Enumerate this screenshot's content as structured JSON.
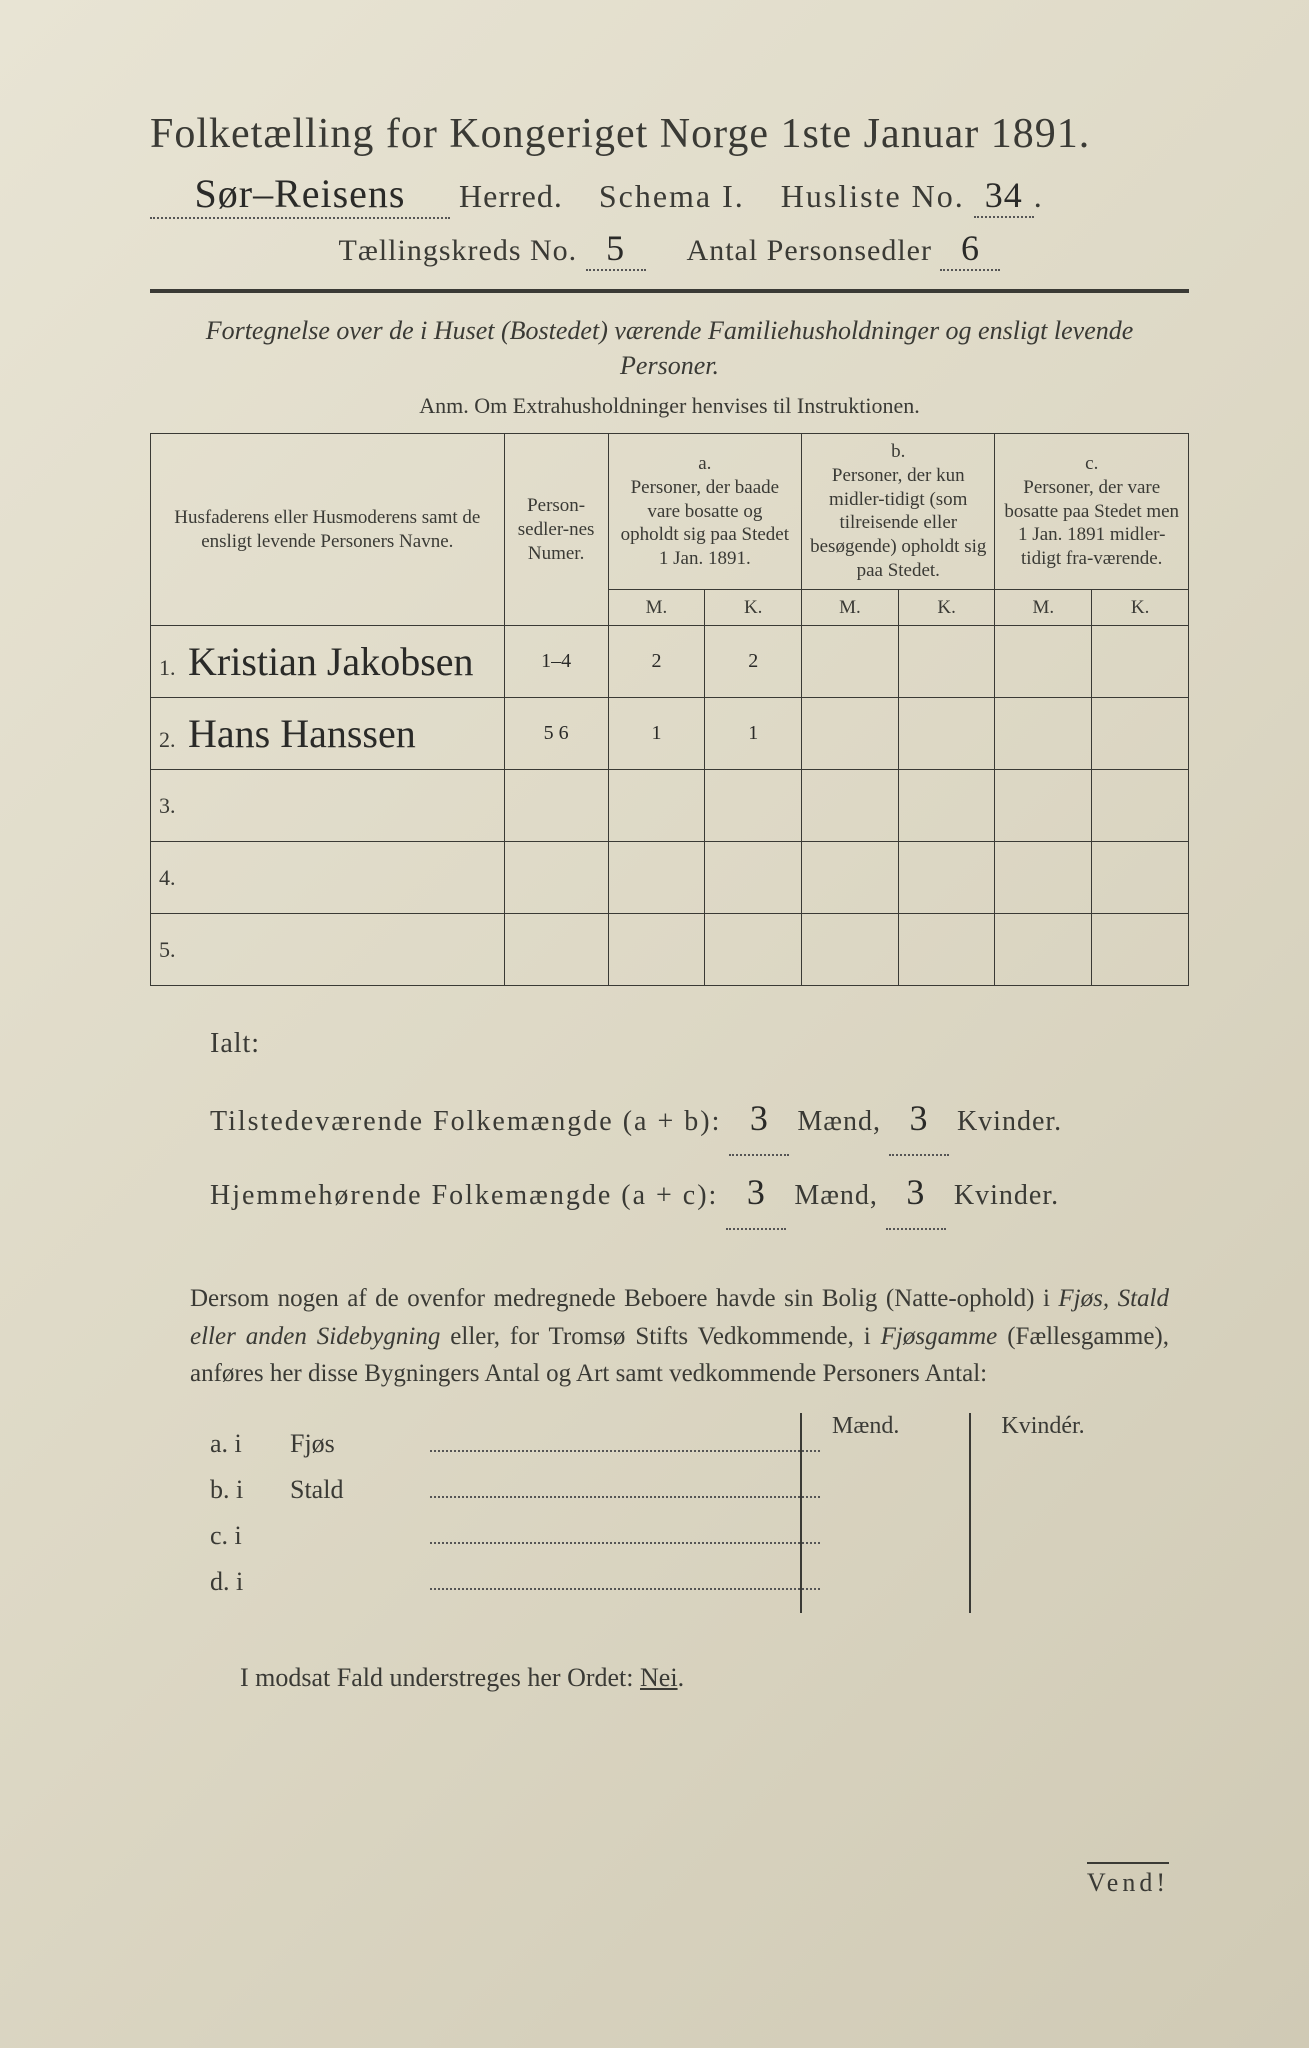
{
  "header": {
    "title": "Folketælling for Kongeriget Norge 1ste Januar 1891.",
    "herred_handwritten": "Sør–Reisens",
    "herred_label": "Herred.",
    "schema_label": "Schema I.",
    "husliste_label": "Husliste No.",
    "husliste_no": "34",
    "kreds_label": "Tællingskreds No.",
    "kreds_no": "5",
    "antal_label": "Antal Personsedler",
    "antal_val": "6"
  },
  "subtitle": "Fortegnelse over de i Huset (Bostedet) værende Familiehusholdninger og ensligt levende Personer.",
  "anm": "Anm.  Om Extrahusholdninger henvises til Instruktionen.",
  "table": {
    "head_name": "Husfaderens eller Husmoderens samt de ensligt levende Personers Navne.",
    "head_num": "Person-sedler-nes Numer.",
    "head_a_top": "a.",
    "head_a": "Personer, der baade vare bosatte og opholdt sig paa Stedet 1 Jan. 1891.",
    "head_b_top": "b.",
    "head_b": "Personer, der kun midler-tidigt (som tilreisende eller besøgende) opholdt sig paa Stedet.",
    "head_c_top": "c.",
    "head_c": "Personer, der vare bosatte paa Stedet men 1 Jan. 1891 midler-tidigt fra-værende.",
    "mk_m": "M.",
    "mk_k": "K.",
    "rows": [
      {
        "n": "1.",
        "name": "Kristian Jakobsen",
        "num": "1–4",
        "am": "2",
        "ak": "2",
        "bm": "",
        "bk": "",
        "cm": "",
        "ck": ""
      },
      {
        "n": "2.",
        "name": "Hans Hanssen",
        "num": "5 6",
        "am": "1",
        "ak": "1",
        "bm": "",
        "bk": "",
        "cm": "",
        "ck": ""
      },
      {
        "n": "3.",
        "name": "",
        "num": "",
        "am": "",
        "ak": "",
        "bm": "",
        "bk": "",
        "cm": "",
        "ck": ""
      },
      {
        "n": "4.",
        "name": "",
        "num": "",
        "am": "",
        "ak": "",
        "bm": "",
        "bk": "",
        "cm": "",
        "ck": ""
      },
      {
        "n": "5.",
        "name": "",
        "num": "",
        "am": "",
        "ak": "",
        "bm": "",
        "bk": "",
        "cm": "",
        "ck": ""
      }
    ]
  },
  "totals": {
    "ialt": "Ialt:",
    "line1_label": "Tilstedeværende Folkemængde (a + b):",
    "line1_m": "3",
    "line1_mlabel": "Mænd,",
    "line1_k": "3",
    "line1_klabel": "Kvinder.",
    "line2_label": "Hjemmehørende Folkemængde (a + c):",
    "line2_m": "3",
    "line2_mlabel": "Mænd,",
    "line2_k": "3",
    "line2_klabel": "Kvinder."
  },
  "para": {
    "text1": "Dersom nogen af de ovenfor medregnede Beboere havde sin Bolig (Natte-ophold) i ",
    "it1": "Fjøs, Stald eller anden Sidebygning",
    "text2": " eller, for Tromsø Stifts Vedkommende, i ",
    "it2": "Fjøsgamme",
    "text3": " (Fællesgamme), anføres her disse Bygningers Antal og Art samt vedkommende Personers Antal:"
  },
  "side": {
    "m": "Mænd.",
    "k": "Kvindér.",
    "rows": [
      {
        "lead": "a.  i",
        "word": "Fjøs"
      },
      {
        "lead": "b.  i",
        "word": "Stald"
      },
      {
        "lead": "c.  i",
        "word": ""
      },
      {
        "lead": "d.  i",
        "word": ""
      }
    ]
  },
  "neg": {
    "text1": "I modsat Fald understreges her Ordet: ",
    "nei": "Nei"
  },
  "vend": "Vend!"
}
